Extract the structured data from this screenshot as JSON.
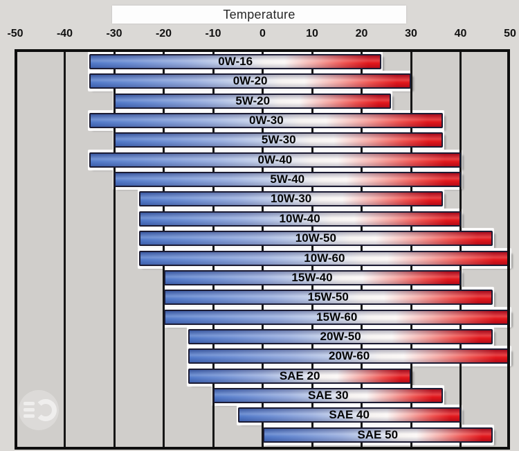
{
  "chart_data": {
    "type": "bar",
    "orientation": "horizontal-range",
    "title": "Temperature",
    "xlabel": "Temperature",
    "xlim": [
      -50,
      50
    ],
    "x_ticks": [
      -50,
      -40,
      -30,
      -20,
      -10,
      0,
      10,
      20,
      30,
      40,
      50
    ],
    "gridlines": [
      -40,
      -30,
      -20,
      -10,
      0,
      10,
      20,
      30,
      40
    ],
    "grid": true,
    "legend": false,
    "bars": [
      {
        "label": "0W-16",
        "temp_min": -35,
        "temp_max": 24
      },
      {
        "label": "0W-20",
        "temp_min": -35,
        "temp_max": 30
      },
      {
        "label": "5W-20",
        "temp_min": -30,
        "temp_max": 26
      },
      {
        "label": "0W-30",
        "temp_min": -35,
        "temp_max": 36.5
      },
      {
        "label": "5W-30",
        "temp_min": -30,
        "temp_max": 36.5
      },
      {
        "label": "0W-40",
        "temp_min": -35,
        "temp_max": 40
      },
      {
        "label": "5W-40",
        "temp_min": -30,
        "temp_max": 40
      },
      {
        "label": "10W-30",
        "temp_min": -25,
        "temp_max": 36.5
      },
      {
        "label": "10W-40",
        "temp_min": -25,
        "temp_max": 40
      },
      {
        "label": "10W-50",
        "temp_min": -25,
        "temp_max": 46.5
      },
      {
        "label": "10W-60",
        "temp_min": -25,
        "temp_max": 50
      },
      {
        "label": "15W-40",
        "temp_min": -20,
        "temp_max": 40
      },
      {
        "label": "15W-50",
        "temp_min": -20,
        "temp_max": 46.5
      },
      {
        "label": "15W-60",
        "temp_min": -20,
        "temp_max": 50
      },
      {
        "label": "20W-50",
        "temp_min": -15,
        "temp_max": 46.5
      },
      {
        "label": "20W-60",
        "temp_min": -15,
        "temp_max": 50
      },
      {
        "label": "SAE 20",
        "temp_min": -15,
        "temp_max": 30
      },
      {
        "label": "SAE 30",
        "temp_min": -10,
        "temp_max": 36.5
      },
      {
        "label": "SAE 40",
        "temp_min": -5,
        "temp_max": 40
      },
      {
        "label": "SAE 50",
        "temp_min": 0,
        "temp_max": 46.5
      }
    ],
    "colors": {
      "cold_blue": "#4872c6",
      "mid_white": "#f6f2f0",
      "hot_red": "#e00b10",
      "plot_background": "#d0cecb",
      "page_background": "#dbd9d6"
    }
  },
  "watermark": {
    "icon": "headlight-logo"
  }
}
